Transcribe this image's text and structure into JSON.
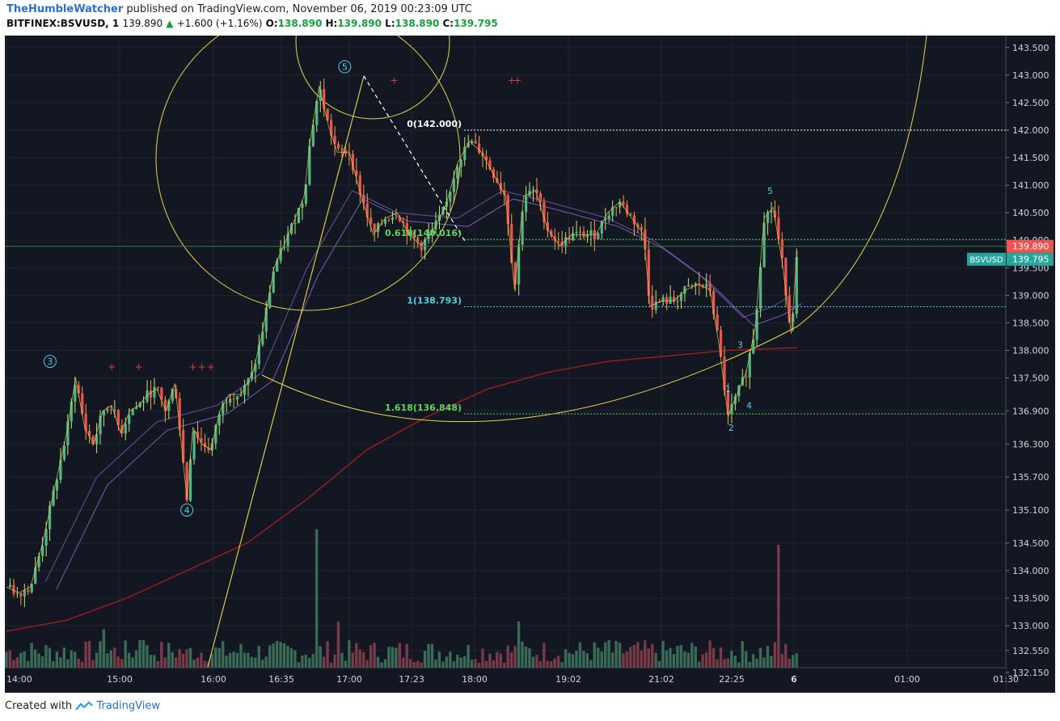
{
  "header": {
    "user": "TheHumbleWatcher",
    "published": "published on TradingView.com, November 06, 2019 00:23:09 UTC",
    "symbol": "BITFINEX:BSVUSD, 1",
    "last": "139.890",
    "change": "+1.600 (+1.16%)",
    "o_label": "O:",
    "o": "138.890",
    "h_label": "H:",
    "h": "139.890",
    "l_label": "L:",
    "l": "138.890",
    "c_label": "C:",
    "c": "139.795"
  },
  "footer": {
    "created_with": "Created with",
    "brand": "TradingView"
  },
  "colors": {
    "background": "#131722",
    "grid": "#1f2430",
    "axis_text": "#d1d4dc",
    "up": "#52b788",
    "down": "#ef5350",
    "wick_up": "#c8e27a",
    "wick_down": "#f7a440",
    "zigzag": "#e6d84a",
    "ma_red": "#a11d1d",
    "ma_purple": "#5a4a8a",
    "fib_white": "#ffffff",
    "fib_green": "#5cd65c",
    "fib_cyan": "#4dd0e1",
    "wave_label": "#4dd0e1",
    "plus_marker": "#e53935",
    "price_tag_red": "#ef5350",
    "price_tag_green": "#26a69a"
  },
  "chart_data": {
    "type": "candlestick",
    "symbol": "BSVUSD",
    "ylim": [
      132.15,
      143.6
    ],
    "y_ticks": [
      "143.500",
      "143.000",
      "142.500",
      "142.000",
      "141.500",
      "141.000",
      "140.500",
      "140.000",
      "139.500",
      "139.000",
      "138.500",
      "138.000",
      "137.500",
      "136.900",
      "136.300",
      "135.700",
      "135.100",
      "134.500",
      "134.000",
      "133.500",
      "133.000",
      "132.550",
      "132.150"
    ],
    "x_ticks": [
      "14:00",
      "15:00",
      "16:00",
      "16:35",
      "17:00",
      "17:23",
      "18:00",
      "19:02",
      "21:02",
      "22:25",
      "6",
      "01:00",
      "01:30"
    ],
    "close_path": [
      [
        0,
        133.7
      ],
      [
        0.4,
        133.6
      ],
      [
        0.8,
        133.7
      ],
      [
        1.2,
        134.5
      ],
      [
        1.6,
        135.5
      ],
      [
        2.0,
        136.5
      ],
      [
        2.3,
        137.5
      ],
      [
        2.6,
        136.6
      ],
      [
        2.9,
        136.3
      ],
      [
        3.2,
        136.9
      ],
      [
        3.5,
        137.0
      ],
      [
        3.8,
        136.5
      ],
      [
        4.1,
        136.9
      ],
      [
        4.4,
        137.0
      ],
      [
        4.7,
        137.2
      ],
      [
        5.0,
        137.3
      ],
      [
        5.3,
        136.9
      ],
      [
        5.6,
        137.4
      ],
      [
        5.8,
        136.4
      ],
      [
        6.0,
        135.3
      ],
      [
        6.2,
        136.6
      ],
      [
        6.5,
        136.3
      ],
      [
        6.8,
        136.2
      ],
      [
        7.1,
        136.9
      ],
      [
        7.4,
        137.2
      ],
      [
        7.8,
        137.2
      ],
      [
        8.2,
        137.6
      ],
      [
        8.5,
        138.3
      ],
      [
        8.9,
        139.5
      ],
      [
        9.3,
        140.0
      ],
      [
        9.6,
        140.4
      ],
      [
        9.9,
        140.8
      ],
      [
        10.1,
        141.8
      ],
      [
        10.4,
        142.8
      ],
      [
        10.7,
        142.1
      ],
      [
        11.0,
        141.6
      ],
      [
        11.4,
        141.6
      ],
      [
        11.8,
        140.8
      ],
      [
        12.2,
        140.1
      ],
      [
        12.6,
        140.4
      ],
      [
        13.0,
        140.5
      ],
      [
        13.4,
        140.1
      ],
      [
        13.8,
        139.9
      ],
      [
        14.2,
        140.2
      ],
      [
        14.6,
        140.6
      ],
      [
        15.0,
        141.4
      ],
      [
        15.4,
        141.8
      ],
      [
        15.8,
        141.6
      ],
      [
        16.2,
        141.2
      ],
      [
        16.6,
        140.8
      ],
      [
        16.9,
        139.1
      ],
      [
        17.2,
        140.8
      ],
      [
        17.6,
        140.9
      ],
      [
        18.0,
        140.2
      ],
      [
        18.4,
        139.9
      ],
      [
        18.8,
        140.1
      ],
      [
        19.2,
        140.1
      ],
      [
        19.6,
        140.1
      ],
      [
        20.0,
        140.5
      ],
      [
        20.4,
        140.7
      ],
      [
        20.8,
        140.4
      ],
      [
        21.2,
        140.1
      ],
      [
        21.4,
        138.8
      ],
      [
        21.8,
        138.9
      ],
      [
        22.2,
        138.9
      ],
      [
        22.6,
        139.1
      ],
      [
        23.0,
        139.2
      ],
      [
        23.4,
        139.1
      ],
      [
        23.7,
        138.1
      ],
      [
        24.0,
        136.8
      ],
      [
        24.3,
        137.2
      ],
      [
        24.6,
        137.6
      ],
      [
        24.9,
        138.4
      ],
      [
        25.2,
        140.4
      ],
      [
        25.5,
        140.6
      ],
      [
        25.8,
        139.6
      ],
      [
        26.1,
        138.3
      ],
      [
        26.3,
        139.8
      ]
    ],
    "volume_spikes": [
      [
        3.2,
        0.25
      ],
      [
        4.5,
        0.18
      ],
      [
        6.0,
        0.12
      ],
      [
        10.3,
        0.9
      ],
      [
        11.0,
        0.3
      ],
      [
        17.0,
        0.3
      ],
      [
        20.0,
        0.18
      ],
      [
        25.7,
        0.8
      ]
    ],
    "ma_purple": [
      [
        1.3,
        133.8
      ],
      [
        3,
        135.7
      ],
      [
        5,
        136.7
      ],
      [
        7,
        137.0
      ],
      [
        8.5,
        137.6
      ],
      [
        10,
        139.5
      ],
      [
        11.5,
        140.9
      ],
      [
        13,
        140.5
      ],
      [
        15,
        140.4
      ],
      [
        16.5,
        140.9
      ],
      [
        18,
        140.7
      ],
      [
        20,
        140.4
      ],
      [
        21.5,
        140.0
      ],
      [
        23,
        139.4
      ],
      [
        24.5,
        138.6
      ],
      [
        25.5,
        138.8
      ],
      [
        26.1,
        139.0
      ]
    ],
    "ma_red": [
      [
        0,
        132.9
      ],
      [
        2,
        133.1
      ],
      [
        4,
        133.5
      ],
      [
        6,
        134.0
      ],
      [
        8,
        134.5
      ],
      [
        10,
        135.3
      ],
      [
        12,
        136.2
      ],
      [
        14,
        136.8
      ],
      [
        16,
        137.3
      ],
      [
        18,
        137.6
      ],
      [
        20,
        137.8
      ],
      [
        22,
        137.9
      ],
      [
        24,
        138.0
      ],
      [
        26.3,
        138.05
      ]
    ],
    "fib_levels": [
      {
        "label": "0(142.000)",
        "value": 142.0,
        "color": "white"
      },
      {
        "label": "0.618(140.016)",
        "value": 140.016,
        "color": "green"
      },
      {
        "label": "1(138.793)",
        "value": 138.793,
        "color": "cyan"
      },
      {
        "label": "1.618(136.848)",
        "value": 136.848,
        "color": "green"
      }
    ],
    "wave_labels": [
      {
        "text": "3",
        "circled": true,
        "x": 1.45,
        "y": 137.8
      },
      {
        "text": "4",
        "circled": true,
        "x": 6.0,
        "y": 135.1
      },
      {
        "text": "5",
        "circled": true,
        "x": 11.25,
        "y": 143.15
      },
      {
        "text": "1",
        "circled": false,
        "x": 24.0,
        "y": 137.3
      },
      {
        "text": "2",
        "circled": false,
        "x": 24.1,
        "y": 136.6
      },
      {
        "text": "3",
        "circled": false,
        "x": 24.4,
        "y": 138.1
      },
      {
        "text": "4",
        "circled": false,
        "x": 24.7,
        "y": 137.0
      },
      {
        "text": "5",
        "circled": false,
        "x": 25.4,
        "y": 140.9
      }
    ],
    "plus_markers": [
      [
        3.5,
        137.7
      ],
      [
        4.4,
        137.7
      ],
      [
        6.2,
        137.7
      ],
      [
        6.5,
        137.7
      ],
      [
        6.8,
        137.7
      ],
      [
        12.9,
        142.9
      ],
      [
        16.8,
        142.9
      ],
      [
        17.0,
        142.9
      ]
    ],
    "last_price": {
      "label_red": "139.890",
      "label_green": "139.795",
      "symbol_tag": "BSVUSD",
      "value": 139.89
    }
  }
}
